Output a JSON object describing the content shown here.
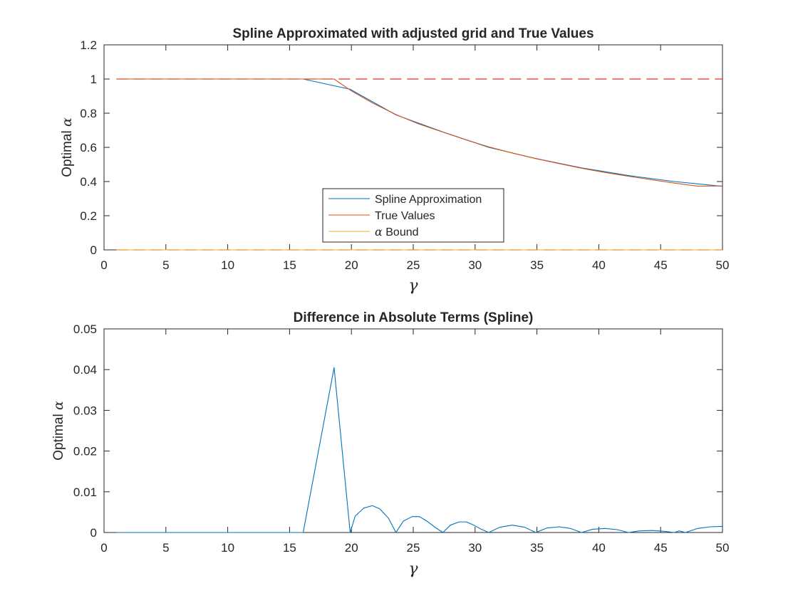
{
  "figure": {
    "background": "#ffffff"
  },
  "chart_data": [
    {
      "type": "line",
      "title": "Spline Approximated with adjusted grid and True Values",
      "xlabel": "γ",
      "ylabel_text": "Optimal ",
      "ylabel_symbol": "α",
      "xlim": [
        0,
        50
      ],
      "ylim": [
        0,
        1.2
      ],
      "xticks": [
        0,
        5,
        10,
        15,
        20,
        25,
        30,
        35,
        40,
        45,
        50
      ],
      "yticks": [
        0,
        0.2,
        0.4,
        0.6,
        0.8,
        1,
        1.2
      ],
      "ytick_labels": [
        "0",
        "0.2",
        "0.4",
        "0.6",
        "0.8",
        "1",
        "1.2"
      ],
      "grid": false,
      "legend": {
        "placement": "bottom-center"
      },
      "series": [
        {
          "name": "Spline Approximation",
          "color": "#0072bd",
          "style": "solid",
          "x": [
            1,
            16.1,
            19.9,
            23.6,
            27.4,
            31.1,
            34.9,
            38.6,
            42.4,
            46.1,
            50
          ],
          "y": [
            1,
            1,
            0.94,
            0.79,
            0.69,
            0.6,
            0.535,
            0.48,
            0.435,
            0.4,
            0.372
          ]
        },
        {
          "name": "True Values",
          "color": "#d95319",
          "style": "solid",
          "x": [
            1,
            18.6,
            19.9,
            21.7,
            23.6,
            25.4,
            27.4,
            29.3,
            31.1,
            33,
            34.9,
            36.8,
            38.6,
            40.5,
            42.4,
            44.3,
            46.1,
            48,
            50
          ],
          "y": [
            1,
            1,
            0.935,
            0.86,
            0.792,
            0.738,
            0.689,
            0.643,
            0.603,
            0.567,
            0.534,
            0.505,
            0.478,
            0.453,
            0.431,
            0.41,
            0.391,
            0.373,
            0.374
          ]
        },
        {
          "name_prefix": "α",
          "name": " Bound",
          "color": "#edb120",
          "style": "solid",
          "x": [
            1,
            50
          ],
          "y": [
            0,
            0
          ]
        }
      ],
      "reference_lines": [
        {
          "y": 1,
          "color": "#e0302a",
          "style": "dashed"
        },
        {
          "y": 0,
          "color": "#e0302a",
          "style": "dashed"
        }
      ]
    },
    {
      "type": "line",
      "title": "Difference in Absolute Terms (Spline)",
      "xlabel": "γ",
      "ylabel_text": "Optimal ",
      "ylabel_symbol": "α",
      "xlim": [
        0,
        50
      ],
      "ylim": [
        0,
        0.05
      ],
      "xticks": [
        0,
        5,
        10,
        15,
        20,
        25,
        30,
        35,
        40,
        45,
        50
      ],
      "yticks": [
        0,
        0.01,
        0.02,
        0.03,
        0.04,
        0.05
      ],
      "ytick_labels": [
        "0",
        "0.01",
        "0.02",
        "0.03",
        "0.04",
        "0.05"
      ],
      "grid": false,
      "series": [
        {
          "color": "#0072bd",
          "style": "solid",
          "x": [
            1,
            16.1,
            18.6,
            19.9,
            20.3,
            21,
            21.7,
            22.3,
            23,
            23.6,
            24.2,
            24.9,
            25.5,
            26.1,
            26.8,
            27.4,
            28,
            28.7,
            29.3,
            29.9,
            30.5,
            31.1,
            32,
            33,
            34,
            34.9,
            35.8,
            36.8,
            37.7,
            38.6,
            39.5,
            40.5,
            41.5,
            42.4,
            43.3,
            44.3,
            45.3,
            46.1,
            46.5,
            47,
            48,
            49,
            50
          ],
          "y": [
            0,
            0,
            0.0405,
            0,
            0.004,
            0.006,
            0.0066,
            0.0058,
            0.0035,
            0,
            0.0028,
            0.0039,
            0.0039,
            0.0028,
            0.0012,
            0,
            0.0018,
            0.0026,
            0.0026,
            0.0018,
            0.0008,
            0,
            0.0013,
            0.0018,
            0.0013,
            0,
            0.0011,
            0.0014,
            0.001,
            0,
            0.0008,
            0.001,
            0.0007,
            0,
            0.0004,
            0.0005,
            0.0003,
            0,
            0.0004,
            0,
            0.001,
            0.0014,
            0.0015
          ]
        }
      ]
    }
  ]
}
